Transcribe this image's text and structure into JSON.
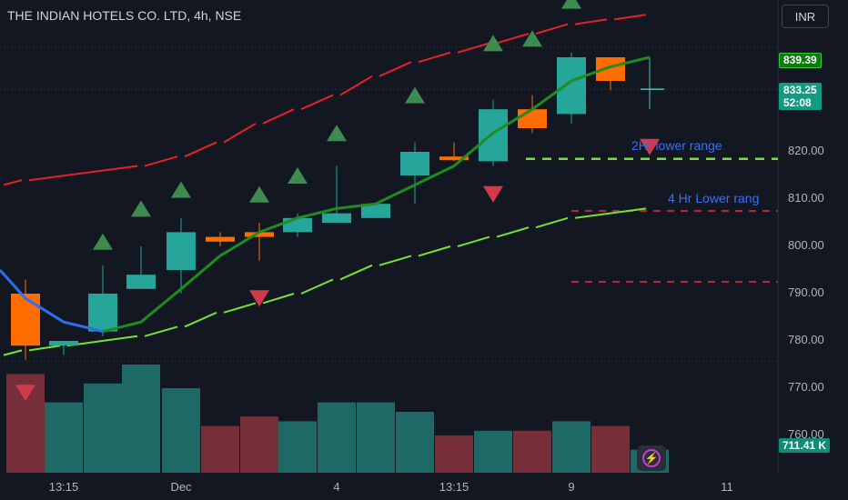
{
  "header": {
    "title": "THE INDIAN HOTELS CO. LTD, 4h, NSE",
    "currency": "INR"
  },
  "price_scale": {
    "labels": [
      "820.00",
      "810.00",
      "800.00",
      "790.00",
      "780.00",
      "770.00",
      "760.00"
    ],
    "prev_close_tag": "839.39",
    "last_price_tag": "833.25",
    "countdown": "52:08",
    "volume_tag": "711.41 K"
  },
  "time_scale": {
    "labels": [
      "13:15",
      "Dec",
      "4",
      "13:15",
      "9",
      "11"
    ]
  },
  "annotations": {
    "range_2hr": "2Hr lower range",
    "range_4hr": "4 Hr Lower rang"
  },
  "colors": {
    "bull_candle": "#26a69a",
    "bear_candle": "#ff6d00",
    "blue_ma": "#2e6ef0",
    "green_ma": "#1e8c1e",
    "upper_band": "#e8202a",
    "lower_band": "#76e32e",
    "buy_marker": "#3d8b4f",
    "sell_marker": "#d03a4a",
    "range_2hr_line": "#6fe33c",
    "range_4hr_line": "#b22838",
    "vol_up": "#1f6e69",
    "vol_down": "#7b2f3a"
  },
  "chart_data": {
    "type": "candlestick",
    "ylim": [
      755,
      850
    ],
    "candles": [
      {
        "x": 28,
        "o": 790,
        "h": 793,
        "l": 776,
        "c": 779,
        "color": "bear"
      },
      {
        "x": 70,
        "o": 779,
        "h": 780,
        "l": 777,
        "c": 780,
        "color": "bull"
      },
      {
        "x": 113,
        "o": 782,
        "h": 796,
        "l": 781,
        "c": 790,
        "color": "bull"
      },
      {
        "x": 155,
        "o": 791,
        "h": 800,
        "l": 791,
        "c": 794,
        "color": "bull"
      },
      {
        "x": 199,
        "o": 795,
        "h": 806,
        "l": 790,
        "c": 803,
        "color": "bull"
      },
      {
        "x": 242,
        "o": 802,
        "h": 803,
        "l": 800,
        "c": 801,
        "color": "bear"
      },
      {
        "x": 285,
        "o": 803,
        "h": 805,
        "l": 797,
        "c": 802,
        "color": "bear"
      },
      {
        "x": 327,
        "o": 803,
        "h": 807,
        "l": 802,
        "c": 806,
        "color": "bull"
      },
      {
        "x": 370,
        "o": 805,
        "h": 817,
        "l": 805,
        "c": 807,
        "color": "bull"
      },
      {
        "x": 413,
        "o": 806,
        "h": 809,
        "l": 806,
        "c": 809,
        "color": "bull"
      },
      {
        "x": 456,
        "o": 815,
        "h": 822,
        "l": 809,
        "c": 820,
        "color": "bull"
      },
      {
        "x": 499,
        "o": 819,
        "h": 822,
        "l": 818,
        "c": 819,
        "color": "bear"
      },
      {
        "x": 542,
        "o": 818,
        "h": 831,
        "l": 817,
        "c": 829,
        "color": "bull"
      },
      {
        "x": 585,
        "o": 829,
        "h": 832,
        "l": 824,
        "c": 825,
        "color": "bear"
      },
      {
        "x": 628,
        "o": 828,
        "h": 841,
        "l": 826,
        "c": 840,
        "color": "bull"
      },
      {
        "x": 671,
        "o": 840,
        "h": 840,
        "l": 833,
        "c": 835,
        "color": "bear"
      },
      {
        "x": 714,
        "o": 833.25,
        "h": 840,
        "l": 829,
        "c": 833.25,
        "color": "cross"
      }
    ],
    "volume": [
      {
        "x": 28,
        "v": 773,
        "color": "down"
      },
      {
        "x": 70,
        "v": 767,
        "color": "up"
      },
      {
        "x": 113,
        "v": 771,
        "color": "up"
      },
      {
        "x": 155,
        "v": 775,
        "color": "up"
      },
      {
        "x": 199,
        "v": 770,
        "color": "up"
      },
      {
        "x": 242,
        "v": 762,
        "color": "down"
      },
      {
        "x": 285,
        "v": 764,
        "color": "down"
      },
      {
        "x": 327,
        "v": 763,
        "color": "up"
      },
      {
        "x": 370,
        "v": 767,
        "color": "up"
      },
      {
        "x": 413,
        "v": 767,
        "color": "up"
      },
      {
        "x": 456,
        "v": 765,
        "color": "up"
      },
      {
        "x": 499,
        "v": 760,
        "color": "down"
      },
      {
        "x": 542,
        "v": 761,
        "color": "up"
      },
      {
        "x": 585,
        "v": 761,
        "color": "down"
      },
      {
        "x": 628,
        "v": 763,
        "color": "up"
      },
      {
        "x": 671,
        "v": 762,
        "color": "down"
      },
      {
        "x": 714,
        "v": 757,
        "color": "up"
      }
    ],
    "ma_blue": [
      [
        0,
        795
      ],
      [
        28,
        789
      ],
      [
        70,
        784
      ],
      [
        113,
        782
      ]
    ],
    "ma_green": [
      [
        113,
        782
      ],
      [
        155,
        784
      ],
      [
        199,
        791
      ],
      [
        242,
        798
      ],
      [
        285,
        803
      ],
      [
        327,
        806
      ],
      [
        370,
        808
      ],
      [
        413,
        809
      ],
      [
        456,
        813
      ],
      [
        499,
        817
      ],
      [
        542,
        824
      ],
      [
        585,
        829
      ],
      [
        628,
        835
      ],
      [
        671,
        838
      ],
      [
        714,
        840
      ]
    ],
    "upper_band": [
      [
        0,
        813
      ],
      [
        28,
        814
      ],
      [
        155,
        817
      ],
      [
        199,
        819
      ],
      [
        242,
        822
      ],
      [
        285,
        826
      ],
      [
        327,
        829
      ],
      [
        370,
        832
      ],
      [
        413,
        836
      ],
      [
        456,
        839
      ],
      [
        499,
        841
      ],
      [
        542,
        843
      ],
      [
        585,
        845
      ],
      [
        628,
        847
      ],
      [
        671,
        848
      ],
      [
        714,
        849
      ]
    ],
    "lower_band": [
      [
        0,
        777
      ],
      [
        28,
        778
      ],
      [
        70,
        779
      ],
      [
        155,
        781
      ],
      [
        199,
        783
      ],
      [
        242,
        786
      ],
      [
        285,
        788
      ],
      [
        327,
        790
      ],
      [
        370,
        793
      ],
      [
        413,
        796
      ],
      [
        456,
        798
      ],
      [
        499,
        800
      ],
      [
        542,
        802
      ],
      [
        585,
        804
      ],
      [
        628,
        806
      ],
      [
        714,
        808
      ]
    ],
    "buy_markers": [
      [
        113,
        801
      ],
      [
        155,
        808
      ],
      [
        199,
        812
      ],
      [
        285,
        811
      ],
      [
        327,
        815
      ],
      [
        370,
        824
      ],
      [
        456,
        832
      ],
      [
        542,
        843
      ],
      [
        585,
        844
      ],
      [
        628,
        852
      ]
    ],
    "sell_markers": [
      [
        28,
        769
      ],
      [
        285,
        789
      ],
      [
        542,
        811
      ],
      [
        714,
        821
      ]
    ],
    "range_2hr_y": 818.5,
    "range_4hr_y": 807.5,
    "range_4hr_lower_y": 792.5,
    "prev_close": 839.39,
    "last_price": 833.25
  }
}
